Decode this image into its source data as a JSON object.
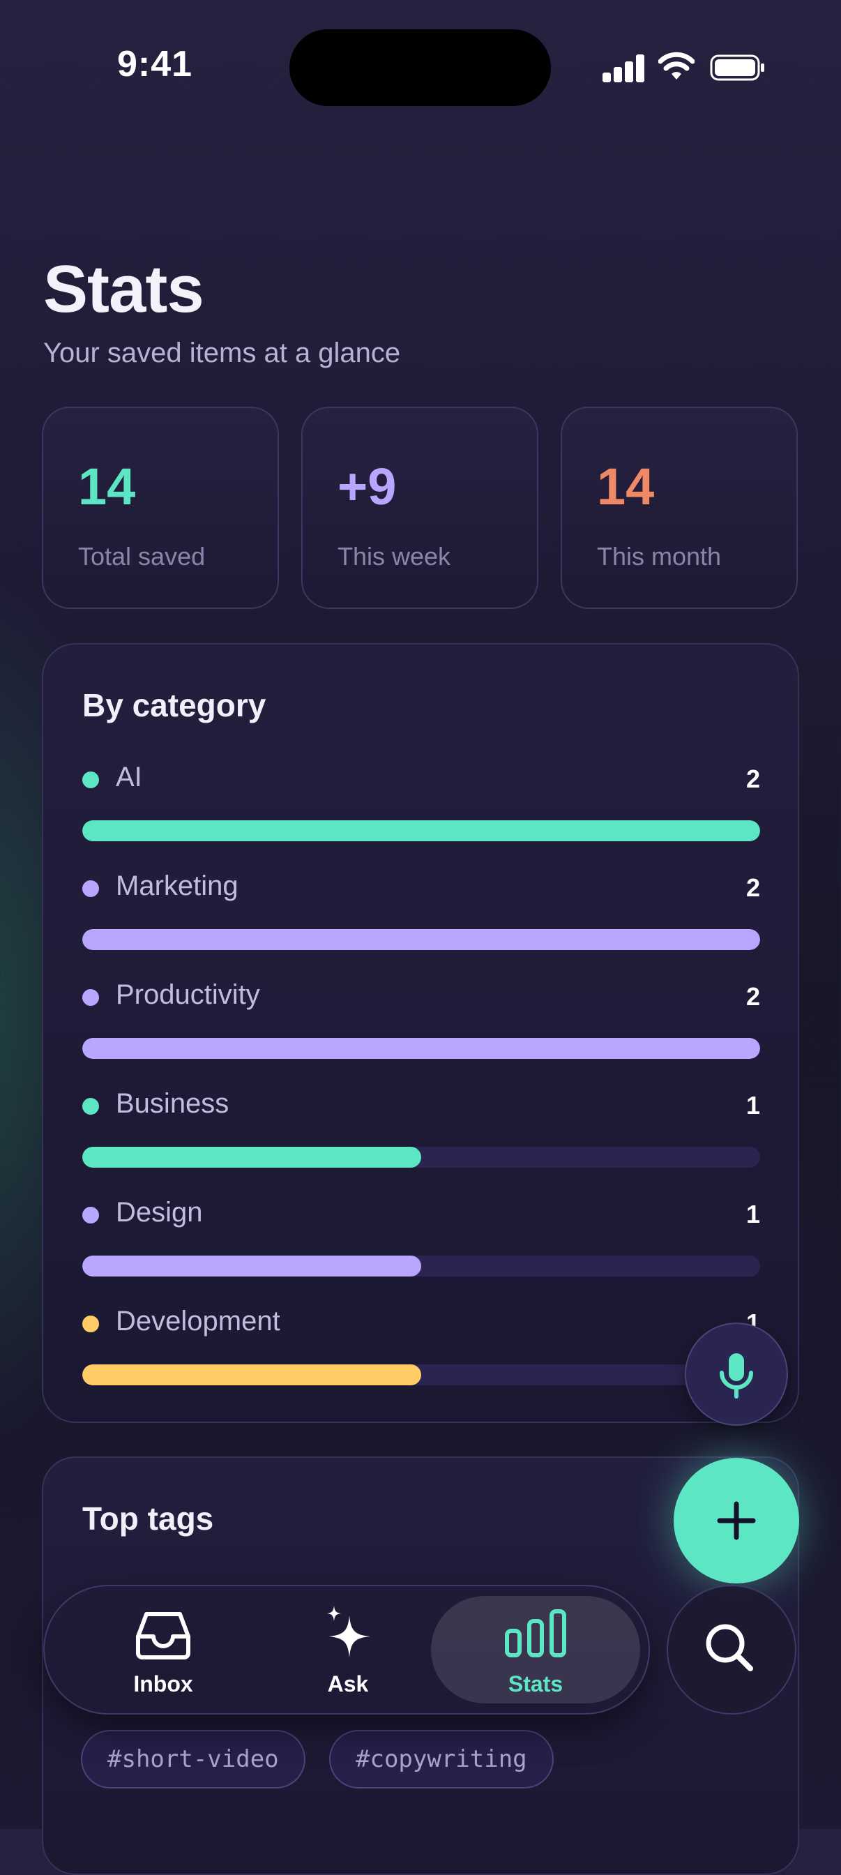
{
  "status_bar": {
    "time": "9:41"
  },
  "header": {
    "title": "Stats",
    "subtitle": "Your saved items at a glance"
  },
  "stats": [
    {
      "value": "14",
      "label": "Total saved",
      "color": "#5de6c3"
    },
    {
      "value": "+9",
      "label": "This week",
      "color": "#b9a6ff"
    },
    {
      "value": "14",
      "label": "This month",
      "color": "#f08a66"
    }
  ],
  "by_category": {
    "title": "By category",
    "max": 2,
    "items": [
      {
        "name": "AI",
        "count": 2,
        "color": "#5de6c3"
      },
      {
        "name": "Marketing",
        "count": 2,
        "color": "#b9a6ff"
      },
      {
        "name": "Productivity",
        "count": 2,
        "color": "#b9a6ff"
      },
      {
        "name": "Business",
        "count": 1,
        "color": "#5de6c3"
      },
      {
        "name": "Design",
        "count": 1,
        "color": "#b9a6ff"
      },
      {
        "name": "Development",
        "count": 1,
        "color": "#ffcc66"
      }
    ]
  },
  "top_tags": {
    "title": "Top tags",
    "tags": [
      "#short-video",
      "#copywriting"
    ]
  },
  "tab_bar": {
    "tabs": [
      {
        "label": "Inbox",
        "icon": "inbox-icon"
      },
      {
        "label": "Ask",
        "icon": "sparkle-icon"
      },
      {
        "label": "Stats",
        "icon": "bar-chart-icon",
        "active": true
      }
    ]
  },
  "colors": {
    "accent": "#5de6c3",
    "purple": "#b9a6ff",
    "orange": "#f08a66",
    "yellow": "#ffcc66"
  }
}
